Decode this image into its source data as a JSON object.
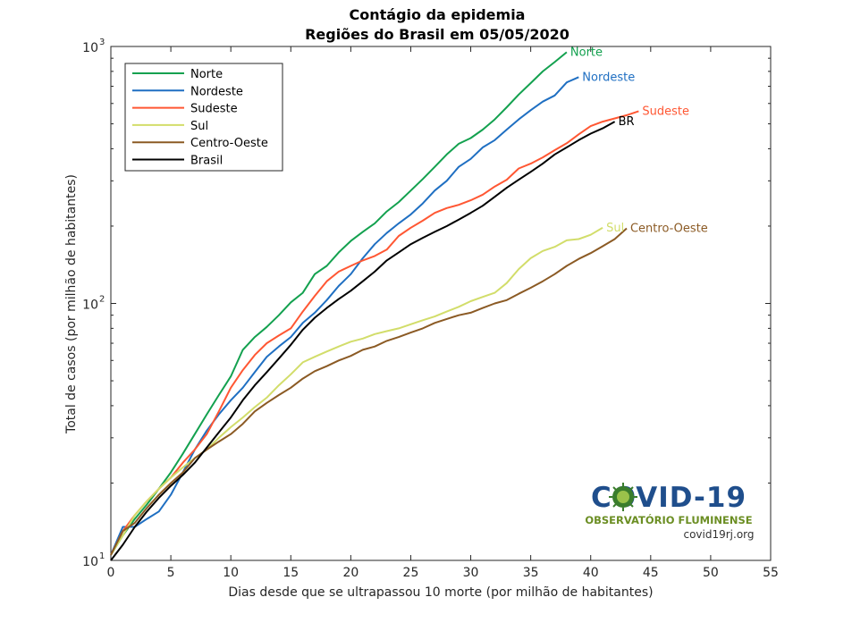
{
  "chart_data": {
    "type": "line",
    "title": "Contágio da epidemia",
    "subtitle": "Regiões do Brasil em 05/05/2020",
    "xlabel": "Dias desde que se ultrapassou 10 morte (por milhão de habitantes)",
    "ylabel": "Total de casos (por milhão de habitantes)",
    "xlim": [
      0,
      55
    ],
    "ylim": [
      10,
      1000
    ],
    "yscale": "log",
    "xticks": [
      0,
      5,
      10,
      15,
      20,
      25,
      30,
      35,
      40,
      45,
      50,
      55
    ],
    "xtick_labels": [
      "0",
      "5",
      "10",
      "15",
      "20",
      "25",
      "30",
      "35",
      "40",
      "45",
      "50",
      "55"
    ],
    "yticks": [
      {
        "value": 10,
        "base": "10",
        "exp": "1"
      },
      {
        "value": 100,
        "base": "10",
        "exp": "2"
      },
      {
        "value": 1000,
        "base": "10",
        "exp": "3"
      }
    ],
    "grid": false,
    "legend_position": "top-left",
    "series": [
      {
        "name": "Norte",
        "color": "#13a14f",
        "end_label": "Norte",
        "x": [
          0,
          1,
          2,
          3,
          4,
          5,
          6,
          7,
          8,
          9,
          10,
          11,
          12,
          13,
          14,
          15,
          16,
          17,
          18,
          19,
          20,
          21,
          22,
          23,
          24,
          25,
          26,
          27,
          28,
          29,
          30,
          31,
          32,
          33,
          34,
          35,
          36,
          37,
          38
        ],
        "y": [
          10.5,
          12.5,
          14.5,
          16.5,
          19,
          22,
          26,
          31,
          37,
          44,
          52,
          66,
          74,
          81,
          90,
          101,
          110,
          130,
          140,
          158,
          175,
          190,
          205,
          228,
          248,
          275,
          305,
          340,
          380,
          418,
          440,
          475,
          520,
          580,
          650,
          720,
          800,
          870,
          950
        ]
      },
      {
        "name": "Nordeste",
        "color": "#1f6fc2",
        "end_label": "Nordeste",
        "x": [
          0,
          1,
          2,
          3,
          4,
          5,
          6,
          7,
          8,
          9,
          10,
          11,
          12,
          13,
          14,
          15,
          16,
          17,
          18,
          19,
          20,
          21,
          22,
          23,
          24,
          25,
          26,
          27,
          28,
          29,
          30,
          31,
          32,
          33,
          34,
          35,
          36,
          37,
          38,
          39
        ],
        "y": [
          10.5,
          13.5,
          13.5,
          14.5,
          15.5,
          18,
          22,
          27,
          32,
          37,
          42,
          47,
          54,
          62,
          68,
          74,
          84,
          92,
          103,
          117,
          130,
          150,
          170,
          188,
          205,
          222,
          245,
          275,
          300,
          340,
          365,
          405,
          432,
          475,
          520,
          565,
          610,
          645,
          725,
          760
        ]
      },
      {
        "name": "Sudeste",
        "color": "#ff5733",
        "end_label": "Sudeste",
        "x": [
          0,
          1,
          2,
          3,
          4,
          5,
          6,
          7,
          8,
          9,
          10,
          11,
          12,
          13,
          14,
          15,
          16,
          17,
          18,
          19,
          20,
          21,
          22,
          23,
          24,
          25,
          26,
          27,
          28,
          29,
          30,
          31,
          32,
          33,
          34,
          35,
          36,
          37,
          38,
          39,
          40,
          41,
          42,
          43,
          44
        ],
        "y": [
          10.5,
          13,
          15,
          17,
          19,
          21,
          24,
          27,
          31,
          38,
          47,
          55,
          63,
          70,
          75,
          80,
          93,
          107,
          122,
          133,
          140,
          147,
          153,
          162,
          183,
          197,
          210,
          225,
          235,
          242,
          252,
          265,
          285,
          303,
          335,
          350,
          370,
          395,
          420,
          455,
          490,
          510,
          525,
          540,
          560
        ]
      },
      {
        "name": "Sul",
        "color": "#d2dd6a",
        "end_label": "Sul",
        "x": [
          0,
          1,
          2,
          3,
          4,
          5,
          6,
          7,
          8,
          9,
          10,
          11,
          12,
          13,
          14,
          15,
          16,
          17,
          18,
          19,
          20,
          21,
          22,
          23,
          24,
          25,
          26,
          27,
          28,
          29,
          30,
          31,
          32,
          33,
          34,
          35,
          36,
          37,
          38,
          39,
          40,
          41
        ],
        "y": [
          10.5,
          12.5,
          15,
          17,
          19,
          21,
          23,
          25,
          27,
          30,
          33,
          36,
          39.5,
          43,
          48,
          53,
          59,
          62,
          65,
          68,
          71,
          73,
          76,
          78,
          80,
          83,
          86,
          89,
          93,
          97,
          102,
          106,
          110,
          120,
          136,
          150,
          160,
          166,
          176,
          178,
          185,
          197
        ]
      },
      {
        "name": "Centro-Oeste",
        "color": "#8b5a24",
        "end_label": "Centro-Oeste",
        "x": [
          0,
          1,
          2,
          3,
          4,
          5,
          6,
          7,
          8,
          9,
          10,
          11,
          12,
          13,
          14,
          15,
          16,
          17,
          18,
          19,
          20,
          21,
          22,
          23,
          24,
          25,
          26,
          27,
          28,
          29,
          30,
          31,
          32,
          33,
          34,
          35,
          36,
          37,
          38,
          39,
          40,
          41,
          42,
          43
        ],
        "y": [
          10.5,
          13,
          14,
          16,
          18,
          20,
          22,
          25,
          27,
          29,
          31,
          34,
          38,
          41,
          44,
          47,
          51,
          54.5,
          57,
          60,
          62.5,
          66,
          68,
          71.5,
          74,
          77,
          80,
          84,
          87,
          90,
          92,
          96,
          100,
          103,
          109,
          115,
          122,
          130,
          140,
          149,
          157,
          167,
          178,
          196
        ]
      },
      {
        "name": "Brasil",
        "color": "#000000",
        "end_label": "BR",
        "x": [
          0,
          1,
          2,
          3,
          4,
          5,
          6,
          7,
          8,
          9,
          10,
          11,
          12,
          13,
          14,
          15,
          16,
          17,
          18,
          19,
          20,
          21,
          22,
          23,
          24,
          25,
          26,
          27,
          28,
          29,
          30,
          31,
          32,
          33,
          34,
          35,
          36,
          37,
          38,
          39,
          40,
          41,
          42
        ],
        "y": [
          10,
          11.5,
          13.5,
          15.5,
          17.5,
          19.5,
          21.5,
          24,
          27.5,
          31.5,
          36,
          42,
          48,
          54,
          61,
          69,
          79,
          88,
          96,
          104,
          112,
          122,
          133,
          147,
          158,
          170,
          180,
          190,
          200,
          212,
          225,
          240,
          260,
          282,
          303,
          325,
          350,
          380,
          405,
          432,
          458,
          480,
          510
        ]
      }
    ]
  },
  "logo": {
    "title": "COVID-19",
    "subtitle": "OBSERVATÓRIO FLUMINENSE",
    "url": "covid19rj.org"
  }
}
